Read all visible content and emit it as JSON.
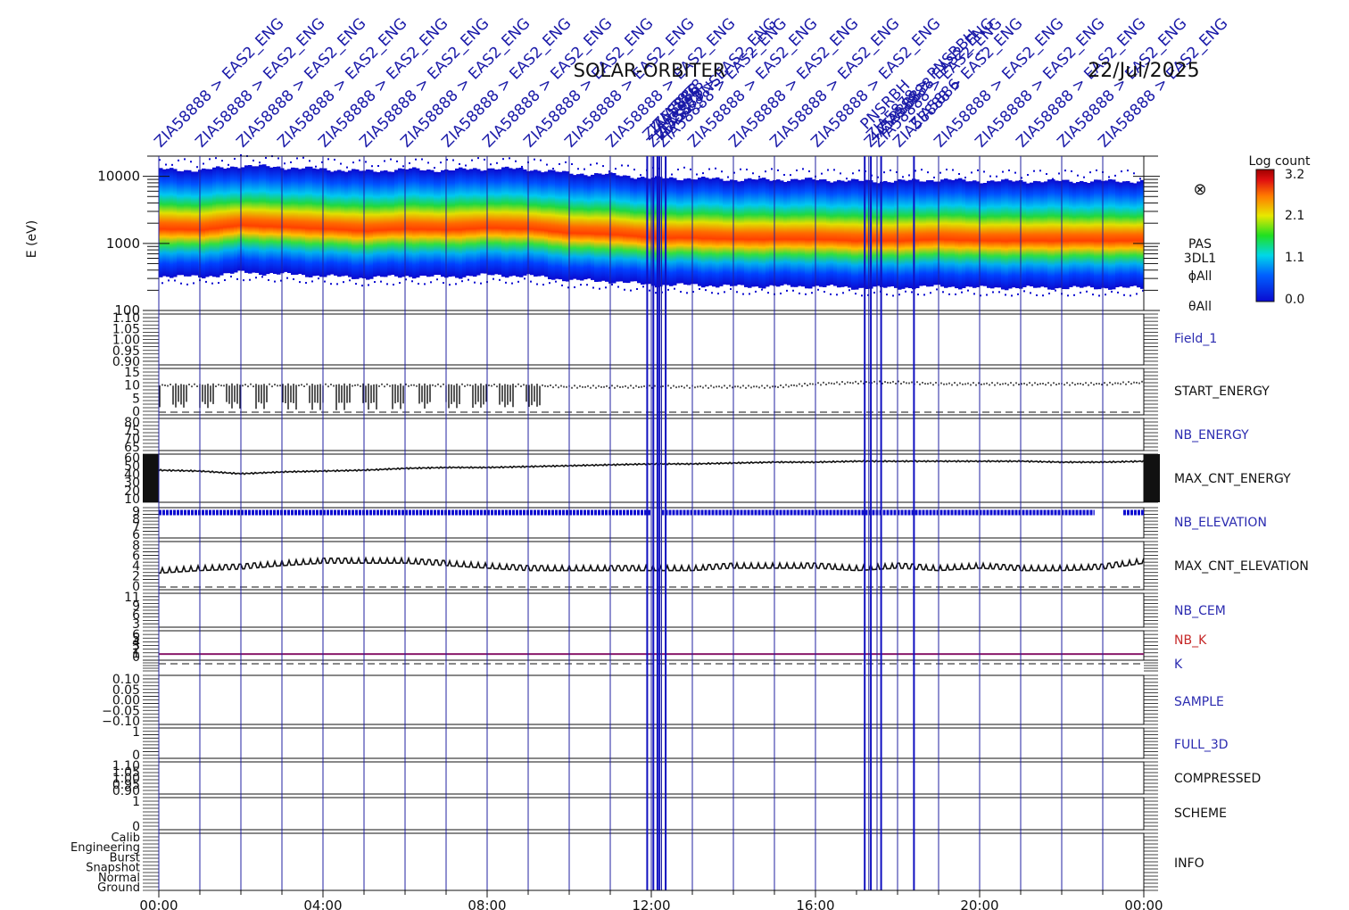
{
  "header": {
    "title": "SOLAR-ORBITER",
    "date": "22/Jul/2025"
  },
  "chart_data": {
    "type": "heatmap",
    "x_axis": {
      "range_hours": [
        0,
        24
      ],
      "ticks": [
        {
          "hour": 0,
          "label": "00:00"
        },
        {
          "hour": 4,
          "label": "04:00"
        },
        {
          "hour": 8,
          "label": "08:00"
        },
        {
          "hour": 12,
          "label": "12:00"
        },
        {
          "hour": 16,
          "label": "16:00"
        },
        {
          "hour": 20,
          "label": "20:00"
        },
        {
          "hour": 24,
          "label": "00:00"
        }
      ]
    },
    "spectrogram": {
      "ylabel": "E (eV)",
      "yscale": "log",
      "ylim": [
        100,
        20000
      ],
      "yticks": [
        {
          "v": 10000,
          "label": "10000"
        },
        {
          "v": 1000,
          "label": "1000"
        },
        {
          "v": 100,
          "label": "100"
        }
      ],
      "side_labels": [
        "PAS",
        "3DL1",
        "ϕAll",
        "θAll"
      ],
      "colorbar": {
        "title": "Log count",
        "ticks": [
          "3.2",
          "2.1",
          "1.1",
          "0.0"
        ],
        "range": [
          0.0,
          3.2
        ]
      },
      "peak_energy_ev": [
        [
          0,
          1500
        ],
        [
          1,
          1450
        ],
        [
          2,
          1700
        ],
        [
          3,
          1600
        ],
        [
          4,
          1500
        ],
        [
          5,
          1400
        ],
        [
          6,
          1500
        ],
        [
          7,
          1450
        ],
        [
          8,
          1550
        ],
        [
          9,
          1500
        ],
        [
          10,
          1300
        ],
        [
          11,
          1250
        ],
        [
          12,
          1100
        ],
        [
          13,
          1100
        ],
        [
          14,
          1050
        ],
        [
          15,
          1050
        ],
        [
          16,
          1050
        ],
        [
          17,
          1000
        ],
        [
          18,
          1000
        ],
        [
          19,
          1050
        ],
        [
          20,
          1000
        ],
        [
          21,
          1000
        ],
        [
          22,
          1000
        ],
        [
          23,
          1000
        ],
        [
          24,
          1000
        ]
      ],
      "marker_symbol": "⊗"
    },
    "panels": [
      {
        "label": "Field_1",
        "color": "#2b2bb0",
        "yticks": [
          "1.10",
          "1.05",
          "1.00",
          "0.95",
          "0.90"
        ]
      },
      {
        "label": "START_ENERGY",
        "color": "#111111",
        "yticks": [
          "15",
          "10",
          "5",
          "0"
        ],
        "ylim": [
          0,
          15
        ],
        "series": [
          [
            0,
            10
          ],
          [
            1,
            10
          ],
          [
            2,
            10
          ],
          [
            3,
            10
          ],
          [
            4,
            10
          ],
          [
            5,
            10
          ],
          [
            6,
            10
          ],
          [
            7,
            10
          ],
          [
            8,
            10
          ],
          [
            9,
            10
          ],
          [
            10,
            9.5
          ],
          [
            11,
            9.5
          ],
          [
            12,
            9.5
          ],
          [
            13,
            9.5
          ],
          [
            14,
            9.5
          ],
          [
            15,
            9.5
          ],
          [
            16,
            10.5
          ],
          [
            17,
            11
          ],
          [
            18,
            11
          ],
          [
            19,
            10.5
          ],
          [
            20,
            10.5
          ],
          [
            21,
            10.5
          ],
          [
            22,
            10.5
          ],
          [
            23,
            10.5
          ],
          [
            24,
            11
          ]
        ],
        "drop_until_hour": 9.5,
        "drop_to": 1
      },
      {
        "label": "NB_ENERGY",
        "color": "#2b2bb0",
        "yticks": [
          "80",
          "75",
          "70",
          "65"
        ]
      },
      {
        "label": "MAX_CNT_ENERGY",
        "color": "#111111",
        "yticks": [
          "60",
          "50",
          "40",
          "30",
          "20",
          "10"
        ],
        "ylim": [
          10,
          60
        ],
        "series": [
          [
            0,
            44
          ],
          [
            1,
            43
          ],
          [
            2,
            40
          ],
          [
            3,
            42
          ],
          [
            4,
            43
          ],
          [
            5,
            44
          ],
          [
            6,
            46
          ],
          [
            7,
            47
          ],
          [
            8,
            47
          ],
          [
            9,
            48
          ],
          [
            10,
            49
          ],
          [
            11,
            50
          ],
          [
            12,
            51
          ],
          [
            13,
            51
          ],
          [
            14,
            52
          ],
          [
            15,
            53
          ],
          [
            16,
            53
          ],
          [
            17,
            54
          ],
          [
            18,
            54
          ],
          [
            19,
            54
          ],
          [
            20,
            54
          ],
          [
            21,
            54
          ],
          [
            22,
            53
          ],
          [
            23,
            53
          ],
          [
            24,
            54
          ]
        ]
      },
      {
        "label": "NB_ELEVATION",
        "color": "#2b2bb0",
        "yticks": [
          "9",
          "8",
          "7",
          "6"
        ],
        "ylim": [
          6,
          9.4
        ],
        "value": 9,
        "gaps": [
          [
            12.0,
            12.25
          ],
          [
            22.8,
            23.5
          ]
        ]
      },
      {
        "label": "MAX_CNT_ELEVATION",
        "color": "#111111",
        "yticks": [
          "8",
          "6",
          "4",
          "2",
          "0"
        ],
        "ylim": [
          0,
          9
        ],
        "series": [
          [
            0,
            3
          ],
          [
            1,
            3.5
          ],
          [
            2,
            3.8
          ],
          [
            3,
            4.5
          ],
          [
            4,
            5
          ],
          [
            5,
            5
          ],
          [
            6,
            5
          ],
          [
            7,
            4.5
          ],
          [
            8,
            4
          ],
          [
            9,
            3.5
          ],
          [
            10,
            3.5
          ],
          [
            11,
            3.5
          ],
          [
            12,
            3.5
          ],
          [
            13,
            3.5
          ],
          [
            14,
            4
          ],
          [
            15,
            4
          ],
          [
            16,
            4
          ],
          [
            17,
            3.5
          ],
          [
            18,
            4
          ],
          [
            19,
            3.5
          ],
          [
            20,
            4
          ],
          [
            21,
            3.5
          ],
          [
            22,
            3.5
          ],
          [
            23,
            3.8
          ],
          [
            24,
            5
          ]
        ]
      },
      {
        "label": "NB_CEM",
        "color": "#2b2bb0",
        "yticks": [
          "11",
          "9",
          "6",
          "3"
        ]
      },
      {
        "label": "NB_K",
        "color": "#c62828",
        "yticks": [
          "6",
          "5",
          "4",
          "3",
          "2",
          "1",
          "0"
        ],
        "ylim": [
          0,
          6
        ],
        "value": 1
      },
      {
        "label": "K",
        "color": "#2b2bb0",
        "yticks": []
      },
      {
        "label": "SAMPLE",
        "color": "#2b2bb0",
        "yticks": [
          "0.10",
          "0.05",
          "0.00",
          "−0.05",
          "−0.10"
        ]
      },
      {
        "label": "FULL_3D",
        "color": "#2b2bb0",
        "yticks": [
          "1",
          "0"
        ]
      },
      {
        "label": "COMPRESSED",
        "color": "#111111",
        "yticks": [
          "1.10",
          "1.05",
          "1.00",
          "0.95",
          "0.90"
        ]
      },
      {
        "label": "SCHEME",
        "color": "#111111",
        "yticks": [
          "1",
          "0"
        ]
      },
      {
        "label": "INFO",
        "color": "#111111",
        "yticks": [
          "Calib",
          "Engineering",
          "Burst",
          "Snapshot",
          "Normal",
          "Ground"
        ]
      }
    ],
    "annotations": {
      "text": "ZIA58888 > EAS2_ENG",
      "hours": [
        0,
        1,
        2,
        3,
        4,
        5,
        6,
        7,
        8,
        9,
        10,
        11,
        12,
        12.25,
        13,
        14,
        15,
        16,
        17.3,
        17.5,
        18,
        19,
        20,
        21,
        22,
        23
      ],
      "cluster_hours": [
        11.9,
        12.05,
        12.15,
        12.2,
        12.35,
        17.2,
        17.35,
        17.6,
        18.4
      ],
      "cluster_texts": [
        "ZIA58888",
        "ZIA5886",
        "ZIA5878",
        "ZIA5877",
        "EAS2_PNS",
        "PNSRBH",
        "ZIA5878 > PNSRBH"
      ]
    }
  }
}
